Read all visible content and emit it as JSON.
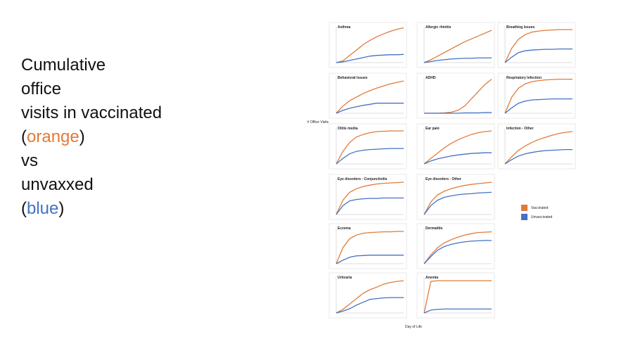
{
  "slide": {
    "lines": [
      [
        {
          "text": "Cumulative"
        }
      ],
      [
        {
          "text": "office"
        }
      ],
      [
        {
          "text": "visits in vaccinated"
        }
      ],
      [
        {
          "text": "("
        },
        {
          "text": "orange",
          "color": "#e07b39"
        },
        {
          "text": ")"
        }
      ],
      [
        {
          "text": "vs"
        }
      ],
      [
        {
          "text": "unvaxxed"
        }
      ],
      [
        {
          "text": "("
        },
        {
          "text": "blue",
          "color": "#4472c4"
        },
        {
          "text": ")"
        }
      ]
    ]
  },
  "figure": {
    "ylabel": "# Office Visits",
    "xlabel": "Day of Life"
  },
  "chart_data": [
    {
      "type": "line",
      "title": "Asthma",
      "x": [
        0,
        1,
        2,
        3,
        4,
        5,
        6,
        7,
        8,
        9,
        10
      ],
      "xlim": [
        0,
        10
      ],
      "ylim": [
        0,
        100
      ],
      "series": [
        {
          "name": "Vaccinated",
          "color": "#e07b39",
          "values": [
            0,
            5,
            20,
            35,
            50,
            62,
            72,
            80,
            87,
            93,
            97
          ]
        },
        {
          "name": "Unvaccinated",
          "color": "#4472c4",
          "values": [
            0,
            2,
            6,
            10,
            14,
            18,
            20,
            21,
            22,
            22,
            23
          ]
        }
      ]
    },
    {
      "type": "line",
      "title": "Allergic rhinitis",
      "x": [
        0,
        1,
        2,
        3,
        4,
        5,
        6,
        7,
        8,
        9,
        10
      ],
      "xlim": [
        0,
        10
      ],
      "ylim": [
        0,
        100
      ],
      "series": [
        {
          "name": "Vaccinated",
          "color": "#e07b39",
          "values": [
            0,
            8,
            18,
            28,
            38,
            48,
            58,
            66,
            74,
            82,
            90
          ]
        },
        {
          "name": "Unvaccinated",
          "color": "#4472c4",
          "values": [
            0,
            3,
            6,
            8,
            10,
            11,
            12,
            12,
            13,
            13,
            13
          ]
        }
      ]
    },
    {
      "type": "line",
      "title": "Breathing Issues",
      "x": [
        0,
        1,
        2,
        3,
        4,
        5,
        6,
        7,
        8,
        9,
        10
      ],
      "xlim": [
        0,
        10
      ],
      "ylim": [
        0,
        100
      ],
      "series": [
        {
          "name": "Vaccinated",
          "color": "#e07b39",
          "values": [
            0,
            40,
            65,
            78,
            85,
            88,
            90,
            91,
            92,
            92,
            92
          ]
        },
        {
          "name": "Unvaccinated",
          "color": "#4472c4",
          "values": [
            0,
            15,
            28,
            33,
            35,
            36,
            37,
            37,
            38,
            38,
            38
          ]
        }
      ]
    },
    {
      "type": "line",
      "title": "Behavioral Issues",
      "x": [
        0,
        1,
        2,
        3,
        4,
        5,
        6,
        7,
        8,
        9,
        10
      ],
      "xlim": [
        0,
        10
      ],
      "ylim": [
        0,
        100
      ],
      "series": [
        {
          "name": "Vaccinated",
          "color": "#e07b39",
          "values": [
            0,
            20,
            35,
            45,
            55,
            63,
            70,
            76,
            82,
            86,
            90
          ]
        },
        {
          "name": "Unvaccinated",
          "color": "#4472c4",
          "values": [
            0,
            8,
            14,
            18,
            22,
            25,
            28,
            28,
            28,
            28,
            28
          ]
        }
      ]
    },
    {
      "type": "line",
      "title": "ADHD",
      "x": [
        0,
        1,
        2,
        3,
        4,
        5,
        6,
        7,
        8,
        9,
        10
      ],
      "xlim": [
        0,
        10
      ],
      "ylim": [
        0,
        100
      ],
      "series": [
        {
          "name": "Vaccinated",
          "color": "#e07b39",
          "values": [
            0,
            0,
            0,
            1,
            3,
            8,
            20,
            40,
            60,
            80,
            95
          ]
        },
        {
          "name": "Unvaccinated",
          "color": "#4472c4",
          "values": [
            0,
            0,
            0,
            0,
            0,
            0,
            1,
            1,
            1,
            2,
            2
          ]
        }
      ]
    },
    {
      "type": "line",
      "title": "Respiratory Infection",
      "x": [
        0,
        1,
        2,
        3,
        4,
        5,
        6,
        7,
        8,
        9,
        10
      ],
      "xlim": [
        0,
        10
      ],
      "ylim": [
        0,
        100
      ],
      "series": [
        {
          "name": "Vaccinated",
          "color": "#e07b39",
          "values": [
            0,
            45,
            70,
            82,
            88,
            91,
            93,
            94,
            95,
            95,
            95
          ]
        },
        {
          "name": "Unvaccinated",
          "color": "#4472c4",
          "values": [
            0,
            15,
            28,
            34,
            37,
            38,
            39,
            40,
            40,
            40,
            40
          ]
        }
      ]
    },
    {
      "type": "line",
      "title": "Otitis media",
      "x": [
        0,
        1,
        2,
        3,
        4,
        5,
        6,
        7,
        8,
        9,
        10
      ],
      "xlim": [
        0,
        10
      ],
      "ylim": [
        0,
        100
      ],
      "series": [
        {
          "name": "Vaccinated",
          "color": "#e07b39",
          "values": [
            0,
            35,
            60,
            75,
            82,
            87,
            90,
            91,
            92,
            92,
            92
          ]
        },
        {
          "name": "Unvaccinated",
          "color": "#4472c4",
          "values": [
            0,
            15,
            28,
            35,
            38,
            40,
            41,
            42,
            43,
            43,
            43
          ]
        }
      ]
    },
    {
      "type": "line",
      "title": "Ear pain",
      "x": [
        0,
        1,
        2,
        3,
        4,
        5,
        6,
        7,
        8,
        9,
        10
      ],
      "xlim": [
        0,
        10
      ],
      "ylim": [
        0,
        100
      ],
      "series": [
        {
          "name": "Vaccinated",
          "color": "#e07b39",
          "values": [
            0,
            15,
            30,
            45,
            57,
            67,
            75,
            82,
            87,
            90,
            92
          ]
        },
        {
          "name": "Unvaccinated",
          "color": "#4472c4",
          "values": [
            0,
            8,
            14,
            18,
            22,
            25,
            27,
            29,
            30,
            31,
            31
          ]
        }
      ]
    },
    {
      "type": "line",
      "title": "Infection - Other",
      "x": [
        0,
        1,
        2,
        3,
        4,
        5,
        6,
        7,
        8,
        9,
        10
      ],
      "xlim": [
        0,
        10
      ],
      "ylim": [
        0,
        100
      ],
      "series": [
        {
          "name": "Vaccinated",
          "color": "#e07b39",
          "values": [
            0,
            20,
            38,
            50,
            60,
            68,
            74,
            80,
            85,
            88,
            90
          ]
        },
        {
          "name": "Unvaccinated",
          "color": "#4472c4",
          "values": [
            0,
            12,
            22,
            28,
            32,
            35,
            37,
            38,
            39,
            40,
            40
          ]
        }
      ]
    },
    {
      "type": "line",
      "title": "Eye disorders - Conjunctivitis",
      "x": [
        0,
        1,
        2,
        3,
        4,
        5,
        6,
        7,
        8,
        9,
        10
      ],
      "xlim": [
        0,
        10
      ],
      "ylim": [
        0,
        100
      ],
      "series": [
        {
          "name": "Vaccinated",
          "color": "#e07b39",
          "values": [
            0,
            40,
            62,
            72,
            78,
            82,
            85,
            87,
            88,
            89,
            90
          ]
        },
        {
          "name": "Unvaccinated",
          "color": "#4472c4",
          "values": [
            0,
            25,
            38,
            42,
            44,
            45,
            45,
            46,
            46,
            46,
            46
          ]
        }
      ]
    },
    {
      "type": "line",
      "title": "Eye disorders - Other",
      "x": [
        0,
        1,
        2,
        3,
        4,
        5,
        6,
        7,
        8,
        9,
        10
      ],
      "xlim": [
        0,
        10
      ],
      "ylim": [
        0,
        100
      ],
      "series": [
        {
          "name": "Vaccinated",
          "color": "#e07b39",
          "values": [
            0,
            35,
            55,
            65,
            72,
            77,
            81,
            84,
            86,
            88,
            90
          ]
        },
        {
          "name": "Unvaccinated",
          "color": "#4472c4",
          "values": [
            0,
            25,
            40,
            48,
            52,
            55,
            57,
            58,
            60,
            61,
            62
          ]
        }
      ]
    },
    {
      "type": "line",
      "title": "Eczema",
      "x": [
        0,
        1,
        2,
        3,
        4,
        5,
        6,
        7,
        8,
        9,
        10
      ],
      "xlim": [
        0,
        10
      ],
      "ylim": [
        0,
        100
      ],
      "series": [
        {
          "name": "Vaccinated",
          "color": "#e07b39",
          "values": [
            0,
            45,
            70,
            80,
            85,
            87,
            88,
            89,
            89,
            90,
            90
          ]
        },
        {
          "name": "Unvaccinated",
          "color": "#4472c4",
          "values": [
            0,
            10,
            18,
            22,
            23,
            24,
            24,
            24,
            24,
            24,
            24
          ]
        }
      ]
    },
    {
      "type": "line",
      "title": "Dermatitis",
      "x": [
        0,
        1,
        2,
        3,
        4,
        5,
        6,
        7,
        8,
        9,
        10
      ],
      "xlim": [
        0,
        10
      ],
      "ylim": [
        0,
        100
      ],
      "series": [
        {
          "name": "Vaccinated",
          "color": "#e07b39",
          "values": [
            0,
            25,
            45,
            58,
            67,
            74,
            80,
            84,
            87,
            88,
            89
          ]
        },
        {
          "name": "Unvaccinated",
          "color": "#4472c4",
          "values": [
            0,
            20,
            38,
            48,
            54,
            58,
            61,
            63,
            64,
            65,
            65
          ]
        }
      ]
    },
    {
      "type": "line",
      "title": "Urticaria",
      "x": [
        0,
        1,
        2,
        3,
        4,
        5,
        6,
        7,
        8,
        9,
        10
      ],
      "xlim": [
        0,
        10
      ],
      "ylim": [
        0,
        100
      ],
      "series": [
        {
          "name": "Vaccinated",
          "color": "#e07b39",
          "values": [
            0,
            10,
            25,
            40,
            55,
            65,
            72,
            80,
            85,
            88,
            90
          ]
        },
        {
          "name": "Unvaccinated",
          "color": "#4472c4",
          "values": [
            0,
            5,
            12,
            22,
            30,
            38,
            40,
            42,
            43,
            43,
            43
          ]
        }
      ]
    },
    {
      "type": "line",
      "title": "Anemia",
      "x": [
        0,
        1,
        2,
        3,
        4,
        5,
        6,
        7,
        8,
        9,
        10
      ],
      "xlim": [
        0,
        10
      ],
      "ylim": [
        0,
        100
      ],
      "series": [
        {
          "name": "Vaccinated",
          "color": "#e07b39",
          "values": [
            0,
            88,
            90,
            90,
            90,
            90,
            90,
            90,
            90,
            90,
            90
          ]
        },
        {
          "name": "Unvaccinated",
          "color": "#4472c4",
          "values": [
            0,
            8,
            10,
            11,
            11,
            11,
            11,
            11,
            11,
            11,
            11
          ]
        }
      ]
    }
  ]
}
